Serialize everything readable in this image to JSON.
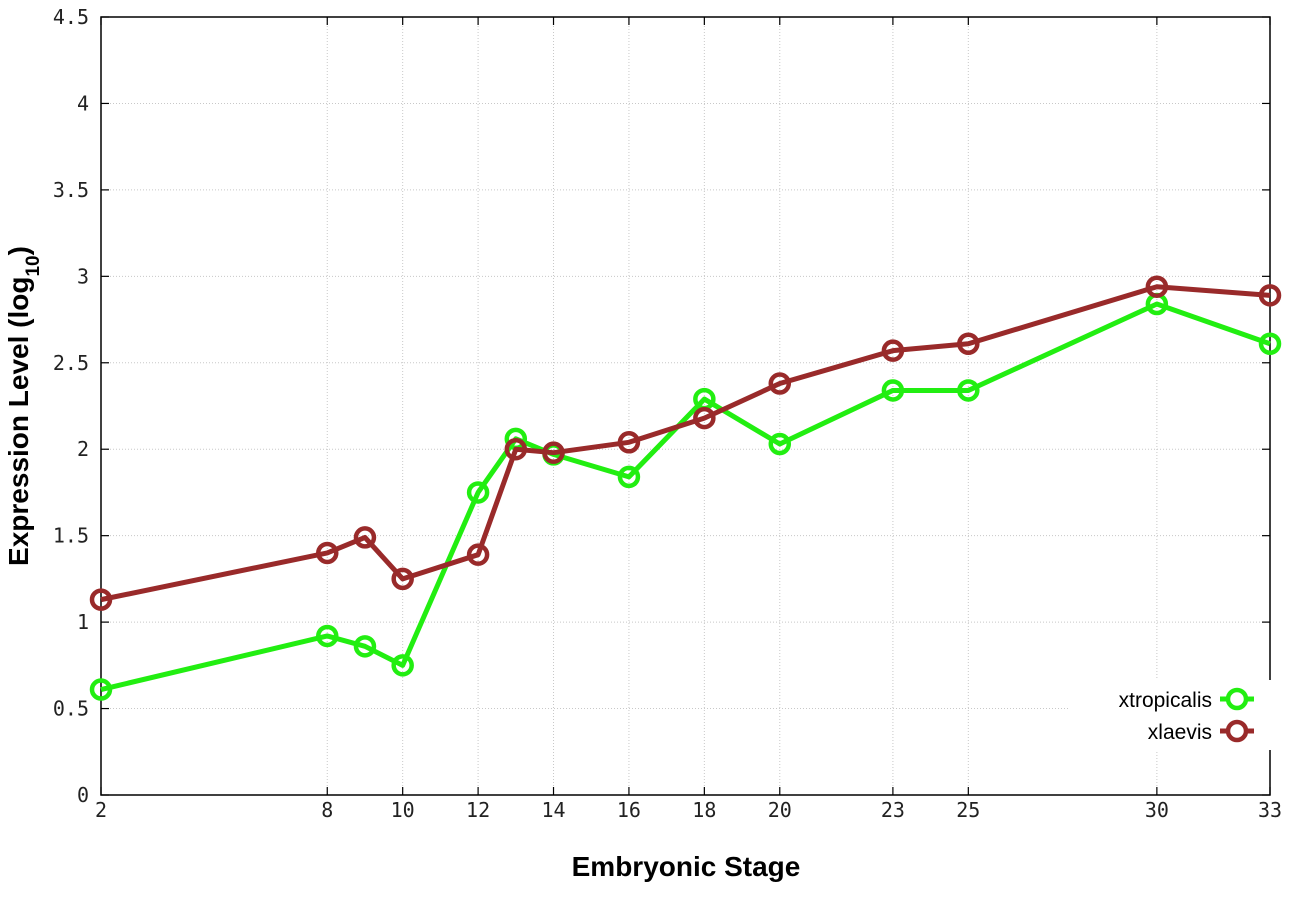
{
  "chart_data": {
    "type": "line",
    "title": "",
    "xlabel": "Embryonic Stage",
    "ylabel_main": "Expression Level (log",
    "ylabel_sub": "10",
    "ylabel_close": ")",
    "x": [
      2,
      8,
      9,
      10,
      12,
      13,
      14,
      16,
      18,
      20,
      23,
      25,
      30,
      33
    ],
    "x_ticks": [
      "2",
      "8",
      "10",
      "12",
      "14",
      "16",
      "18",
      "20",
      "23",
      "25",
      "30",
      "33"
    ],
    "y_ticks": [
      "0",
      "0.5",
      "1",
      "1.5",
      "2",
      "2.5",
      "3",
      "3.5",
      "4",
      "4.5"
    ],
    "xlim": [
      2,
      33
    ],
    "ylim": [
      0,
      4.5
    ],
    "grid": true,
    "legend_position": "bottom-right",
    "series": [
      {
        "name": "xtropicalis",
        "color": "#22ee11",
        "values": [
          0.61,
          0.92,
          0.86,
          0.75,
          1.75,
          2.06,
          1.97,
          1.84,
          2.29,
          2.03,
          2.34,
          2.34,
          2.84,
          2.61
        ]
      },
      {
        "name": "xlaevis",
        "color": "#992a2a",
        "values": [
          1.13,
          1.4,
          1.49,
          1.25,
          1.39,
          2.0,
          1.98,
          2.04,
          2.18,
          2.38,
          2.57,
          2.61,
          2.94,
          2.89
        ]
      }
    ]
  }
}
